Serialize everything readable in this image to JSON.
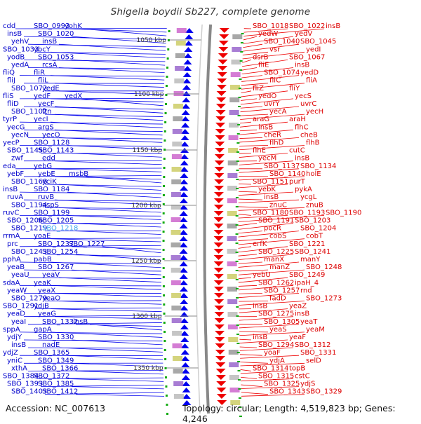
{
  "title": "Shigella boydii Sb227, complete genome",
  "footer": {
    "accession": "Accession: NC_007613",
    "topology": "Topology: circular; Length: 4,519,823 bp; Genes: 4,246"
  },
  "colors": {
    "left_labels": "#0000cc",
    "highlight_label": "#44aaee",
    "right_labels": "#dd0000",
    "axis": "#888888",
    "tick_marks": "#11aa11",
    "minus_strand": "#0000ee",
    "plus_strand": "#ee0000"
  },
  "kbp_ticks": [
    "1050 kbp",
    "1100 kbp",
    "1150 kbp",
    "1200 kbp",
    "1250 kbp",
    "1300 kbp",
    "1350 kbp"
  ],
  "left_genes": [
    "cdd",
    "SBO_0993",
    "yohK",
    "insB",
    "SBO_1020",
    "yehV",
    "insB",
    "SBO_1033",
    "ybcY",
    "yodB",
    "SBO_1053",
    "yedA",
    "rcsA",
    "fliQ",
    "fliR",
    "fliJ",
    "fliL",
    "SBO_1072",
    "yedE",
    "fliS",
    "yedF",
    "yedX",
    "fliD",
    "yecF",
    "SBO_1102",
    "ftn",
    "tyrP",
    "yecI",
    "yecG",
    "argS",
    "yecN",
    "yecO",
    "yecP",
    "SBO_1128",
    "SBO_1145",
    "SBO_1143",
    "zwf",
    "edd",
    "eda",
    "yebG",
    "yebF",
    "yebE",
    "msbB",
    "SBO_1168",
    "yciK",
    "insB",
    "SBO_1184",
    "ruvA",
    "ruvB",
    "SBO_1194",
    "aspS",
    "ruvC",
    "SBO_1199",
    "SBO_1206",
    "SBO_1205",
    "SBO_1219",
    "SBO_1218",
    "rrmA",
    "yoaE",
    "prc",
    "SBO_1237",
    "SBO_1227",
    "SBO_1243",
    "SBO_1254",
    "pphA",
    "pabB",
    "yeaB",
    "SBO_1267",
    "yeaU",
    "yeaV",
    "sdaA",
    "yeaK",
    "yeaW",
    "yeaX",
    "SBO_1279",
    "yeaO",
    "SBO_1291",
    "ydjB",
    "yeaD",
    "yeaG",
    "yeaI",
    "SBO_1332",
    "insB",
    "sppA",
    "gapA",
    "ydjY",
    "SBO_1330",
    "insB",
    "nadE",
    "ydjZ",
    "SBO_1365",
    "yniC",
    "SBO_1349",
    "xthA",
    "SBO_1366",
    "SBO_1384",
    "SBO_1372",
    "SBO_1393",
    "SBO_1385",
    "SBO_1403",
    "SBO_1412"
  ],
  "right_genes": [
    "SBO_1018",
    "SBO_1022",
    "insB",
    "yedW",
    "yedV",
    "SBO_1040",
    "SBO_1045",
    "vsr",
    "yedI",
    "dsrB",
    "SBO_1067",
    "fliE",
    "insB",
    "SBO_1074",
    "yedD",
    "fliC",
    "fliA",
    "fliZ",
    "fliY",
    "yedO",
    "yecS",
    "uvrY",
    "uvrC",
    "yecA",
    "yecH",
    "araG",
    "araH",
    "insB",
    "flhC",
    "cheR",
    "cheB",
    "flhD",
    "flhB",
    "flhE",
    "cutC",
    "yecM",
    "insB",
    "SBO_1137",
    "SBO_1134",
    "SBO_1140",
    "holE",
    "SBO_1151",
    "purT",
    "yebK",
    "pykA",
    "insB",
    "ycgL",
    "znuC",
    "znuB",
    "SBO_1180",
    "SBO_1193",
    "SBO_1190",
    "SBO_1191",
    "SBO_1203",
    "pocR",
    "SBO_1204",
    "cobS",
    "cobT",
    "erfK",
    "SBO_1221",
    "SBO_1225",
    "SBO_1241",
    "manX",
    "manY",
    "manZ",
    "SBO_1248",
    "yebU",
    "SBO_1249",
    "SBO_1262",
    "ipaH_4",
    "SBO_1257",
    "rnd",
    "fadD",
    "SBO_1273",
    "insB",
    "yeaZ",
    "SBO_1275",
    "insB",
    "SBO_1305",
    "yeaT",
    "yeaS",
    "yeaM",
    "insB",
    "yeaF",
    "SBO_1294",
    "SBO_1312",
    "yoaF",
    "SBO_1331",
    "ydjA",
    "selD",
    "SBO_1314",
    "topB",
    "SBO_1315",
    "cstC",
    "SBO_1325",
    "ydjS",
    "SBO_1343",
    "SBO_1329"
  ]
}
